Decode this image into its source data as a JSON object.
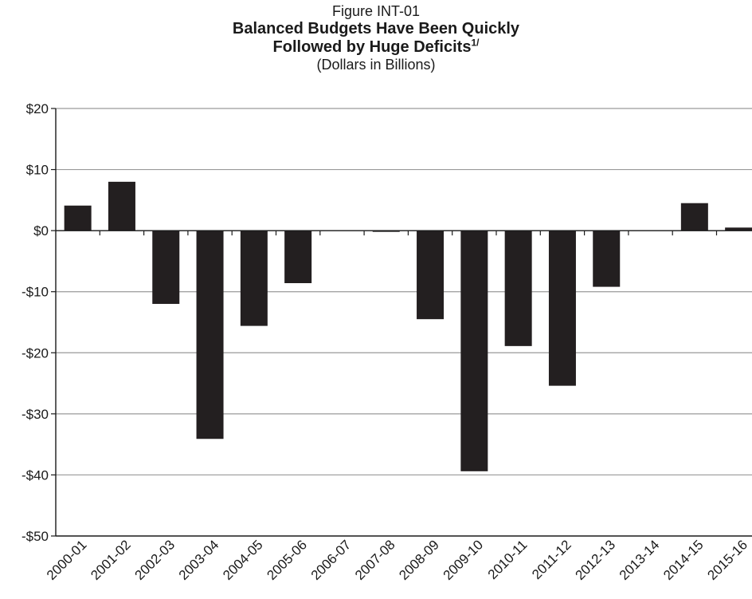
{
  "figure_label": "Figure INT-01",
  "title_line1": "Balanced Budgets Have Been Quickly",
  "title_line2": "Followed by Huge Deficits",
  "title_superscript": "1/",
  "subtitle": "(Dollars in Billions)",
  "chart_data": {
    "type": "bar",
    "title": "Balanced Budgets Have Been Quickly Followed by Huge Deficits",
    "subtitle": "(Dollars in Billions)",
    "categories": [
      "2000-01",
      "2001-02",
      "2002-03",
      "2003-04",
      "2004-05",
      "2005-06",
      "2006-07",
      "2007-08",
      "2008-09",
      "2009-10",
      "2010-11",
      "2011-12",
      "2012-13",
      "2013-14",
      "2014-15",
      "2015-16"
    ],
    "values": [
      4.1,
      8.0,
      -12.0,
      -34.1,
      -15.6,
      -8.6,
      0.0,
      -0.2,
      -14.5,
      -39.4,
      -18.9,
      -25.4,
      -9.2,
      0.0,
      4.5,
      0.5
    ],
    "yticks": [
      20,
      10,
      0,
      -10,
      -20,
      -30,
      -40,
      -50
    ],
    "ytick_labels": [
      "$20",
      "$10",
      "$0",
      "-$10",
      "-$20",
      "-$30",
      "-$40",
      "-$50"
    ],
    "ylim": [
      -50,
      20
    ],
    "xlabel": "",
    "ylabel": "",
    "grid": true,
    "bar_color": "#231f20",
    "grid_color": "#9a9a9a"
  }
}
